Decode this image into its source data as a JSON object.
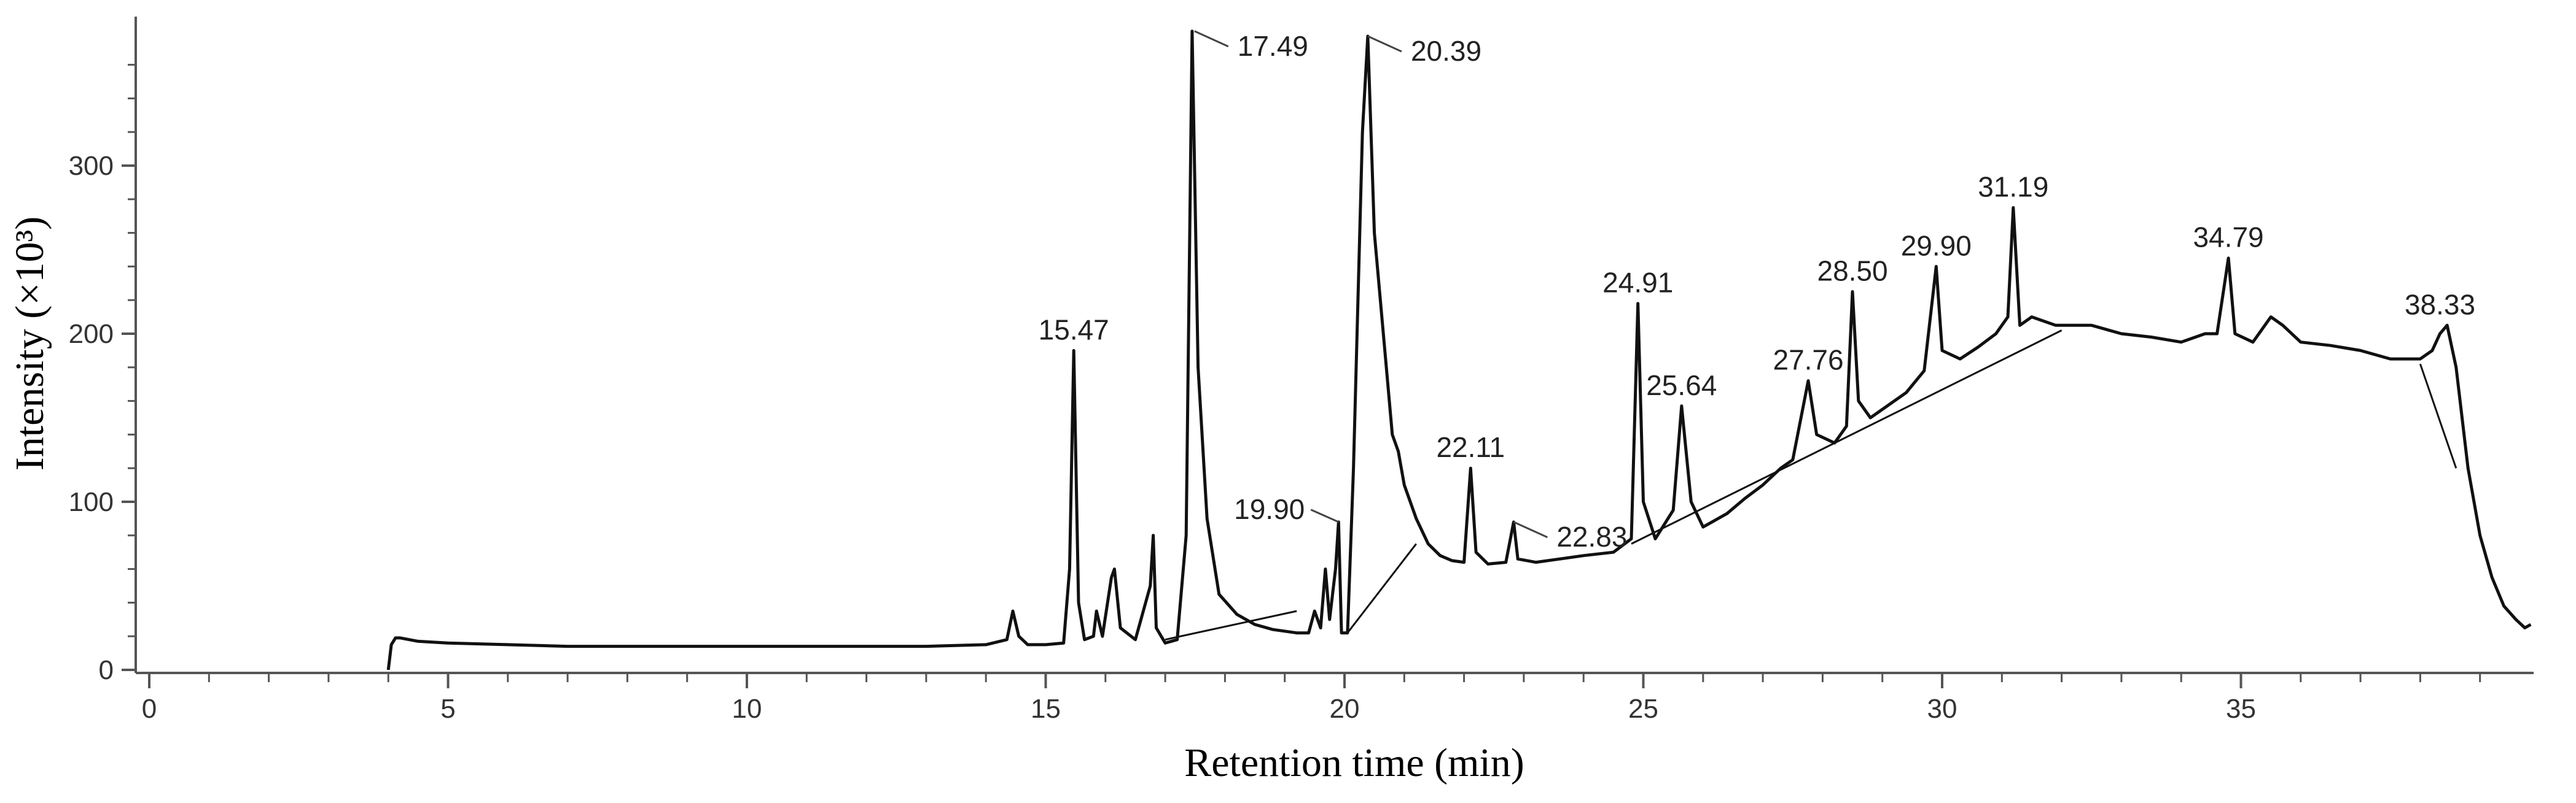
{
  "chart_data": {
    "type": "line",
    "xlabel": "Retention time (min)",
    "ylabel": "Intensity (×10³)",
    "xlim": [
      0,
      40
    ],
    "ylim": [
      0,
      385
    ],
    "x_ticks": [
      0,
      5,
      10,
      15,
      20,
      25,
      30,
      35
    ],
    "x_tick_labels": [
      "0",
      "5",
      "10",
      "15",
      "20",
      "25",
      "30",
      "35"
    ],
    "y_ticks": [
      0,
      100,
      200,
      300
    ],
    "y_tick_labels": [
      "0",
      "100",
      "200",
      "300"
    ],
    "grid": false,
    "legend": "none",
    "series": [
      {
        "x": [
          4.0,
          4.05,
          4.12,
          4.2,
          4.5,
          5.0,
          6.0,
          7.0,
          8.0,
          9.0,
          10.0,
          11.0,
          12.0,
          13.0,
          14.0,
          14.35,
          14.45,
          14.55,
          14.7,
          15.0,
          15.3,
          15.4,
          15.47,
          15.55,
          15.65,
          15.8,
          15.85,
          15.95,
          16.1,
          16.15,
          16.25,
          16.5,
          16.75,
          16.8,
          16.85,
          17.0,
          17.2,
          17.35,
          17.45,
          17.55,
          17.7,
          17.9,
          18.2,
          18.5,
          18.8,
          19.2,
          19.4,
          19.5,
          19.6,
          19.68,
          19.75,
          19.85,
          19.9,
          19.95,
          20.05,
          20.15,
          20.3,
          20.39,
          20.5,
          20.7,
          20.8,
          20.9,
          21.0,
          21.2,
          21.4,
          21.6,
          21.8,
          22.0,
          22.11,
          22.2,
          22.4,
          22.7,
          22.83,
          22.9,
          23.2,
          23.6,
          24.0,
          24.5,
          24.8,
          24.91,
          25.0,
          25.2,
          25.5,
          25.64,
          25.8,
          26.0,
          26.4,
          26.7,
          27.0,
          27.3,
          27.5,
          27.76,
          27.9,
          28.2,
          28.4,
          28.5,
          28.6,
          28.8,
          29.0,
          29.4,
          29.7,
          29.9,
          30.0,
          30.3,
          30.6,
          30.9,
          31.1,
          31.19,
          31.3,
          31.5,
          31.9,
          32.5,
          33.0,
          33.5,
          34.0,
          34.4,
          34.6,
          34.79,
          34.9,
          35.2,
          35.5,
          35.7,
          36.0,
          36.5,
          37.0,
          37.5,
          38.0,
          38.2,
          38.33,
          38.45,
          38.6,
          38.8,
          39.0,
          39.2,
          39.4,
          39.6,
          39.75,
          39.85
        ],
        "y": [
          0,
          15,
          19,
          19,
          17,
          16,
          15,
          14,
          14,
          14,
          14,
          14,
          14,
          14,
          15,
          18,
          35,
          20,
          15,
          15,
          16,
          60,
          190,
          40,
          18,
          20,
          35,
          20,
          55,
          60,
          25,
          18,
          50,
          80,
          25,
          16,
          18,
          80,
          380,
          180,
          90,
          45,
          33,
          27,
          24,
          22,
          22,
          35,
          25,
          60,
          30,
          60,
          88,
          22,
          22,
          120,
          320,
          377,
          260,
          180,
          140,
          130,
          110,
          90,
          75,
          68,
          65,
          64,
          120,
          70,
          63,
          64,
          88,
          66,
          64,
          66,
          68,
          70,
          78,
          218,
          100,
          78,
          95,
          157,
          100,
          85,
          93,
          102,
          110,
          120,
          125,
          172,
          140,
          135,
          145,
          225,
          160,
          150,
          155,
          165,
          178,
          240,
          190,
          185,
          192,
          200,
          210,
          275,
          205,
          210,
          205,
          205,
          200,
          198,
          195,
          200,
          200,
          245,
          200,
          195,
          210,
          205,
          195,
          193,
          190,
          185,
          185,
          190,
          200,
          205,
          180,
          120,
          80,
          55,
          38,
          30,
          25,
          27
        ]
      }
    ],
    "baselines": [
      {
        "x": [
          17.0,
          19.2
        ],
        "y": [
          18,
          35
        ]
      },
      {
        "x": [
          20.05,
          21.2
        ],
        "y": [
          22,
          75
        ]
      },
      {
        "x": [
          24.8,
          32.0
        ],
        "y": [
          75,
          202
        ]
      },
      {
        "x": [
          38.0,
          38.6
        ],
        "y": [
          182,
          120
        ]
      }
    ],
    "peak_labels": [
      {
        "text": "15.47",
        "x": 15.47,
        "y": 190
      },
      {
        "text": "17.49",
        "x": 17.49,
        "y": 380
      },
      {
        "text": "19.90",
        "x": 19.9,
        "y": 88
      },
      {
        "text": "20.39",
        "x": 20.39,
        "y": 377
      },
      {
        "text": "22.11",
        "x": 22.11,
        "y": 120
      },
      {
        "text": "22.83",
        "x": 22.83,
        "y": 88
      },
      {
        "text": "24.91",
        "x": 24.91,
        "y": 218
      },
      {
        "text": "25.64",
        "x": 25.64,
        "y": 157
      },
      {
        "text": "27.76",
        "x": 27.76,
        "y": 172
      },
      {
        "text": "28.50",
        "x": 28.5,
        "y": 225
      },
      {
        "text": "29.90",
        "x": 29.9,
        "y": 240
      },
      {
        "text": "31.19",
        "x": 31.19,
        "y": 275
      },
      {
        "text": "34.79",
        "x": 34.79,
        "y": 245
      },
      {
        "text": "38.33",
        "x": 38.33,
        "y": 205
      }
    ]
  }
}
